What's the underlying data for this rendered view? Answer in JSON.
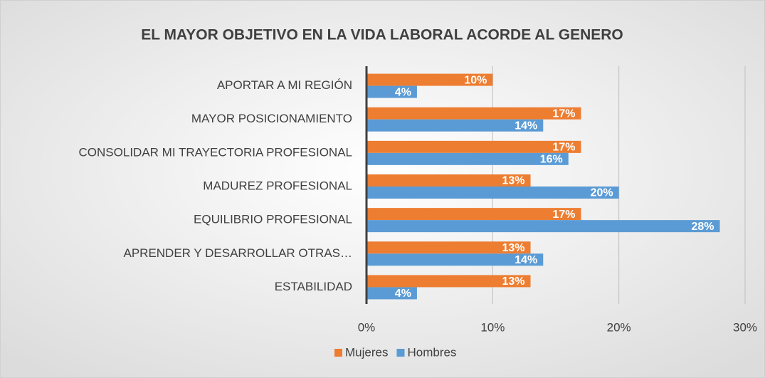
{
  "chart_data": {
    "type": "hbar",
    "title": "EL MAYOR OBJETIVO EN LA VIDA LABORAL ACORDE AL GENERO",
    "categories": [
      "APORTAR A MI REGIÓN",
      "MAYOR POSICIONAMIENTO",
      "CONSOLIDAR MI TRAYECTORIA PROFESIONAL",
      "MADUREZ PROFESIONAL",
      "EQUILIBRIO PROFESIONAL",
      "APRENDER Y DESARROLLAR OTRAS…",
      "ESTABILIDAD"
    ],
    "series": [
      {
        "name": "Mujeres",
        "color": "#ed7d31",
        "values": [
          10,
          17,
          17,
          13,
          17,
          13,
          13
        ],
        "value_labels": [
          "10%",
          "17%",
          "17%",
          "13%",
          "17%",
          "13%",
          "13%"
        ]
      },
      {
        "name": "Hombres",
        "color": "#5b9bd5",
        "values": [
          4,
          14,
          16,
          20,
          28,
          14,
          4
        ],
        "value_labels": [
          "4%",
          "14%",
          "16%",
          "20%",
          "28%",
          "14%",
          "4%"
        ]
      }
    ],
    "xlim": [
      0,
      30
    ],
    "xticks": [
      {
        "value": 0,
        "label": "0%"
      },
      {
        "value": 10,
        "label": "10%"
      },
      {
        "value": 20,
        "label": "20%"
      },
      {
        "value": 30,
        "label": "30%"
      }
    ],
    "grid": true,
    "legend": "bottom"
  }
}
